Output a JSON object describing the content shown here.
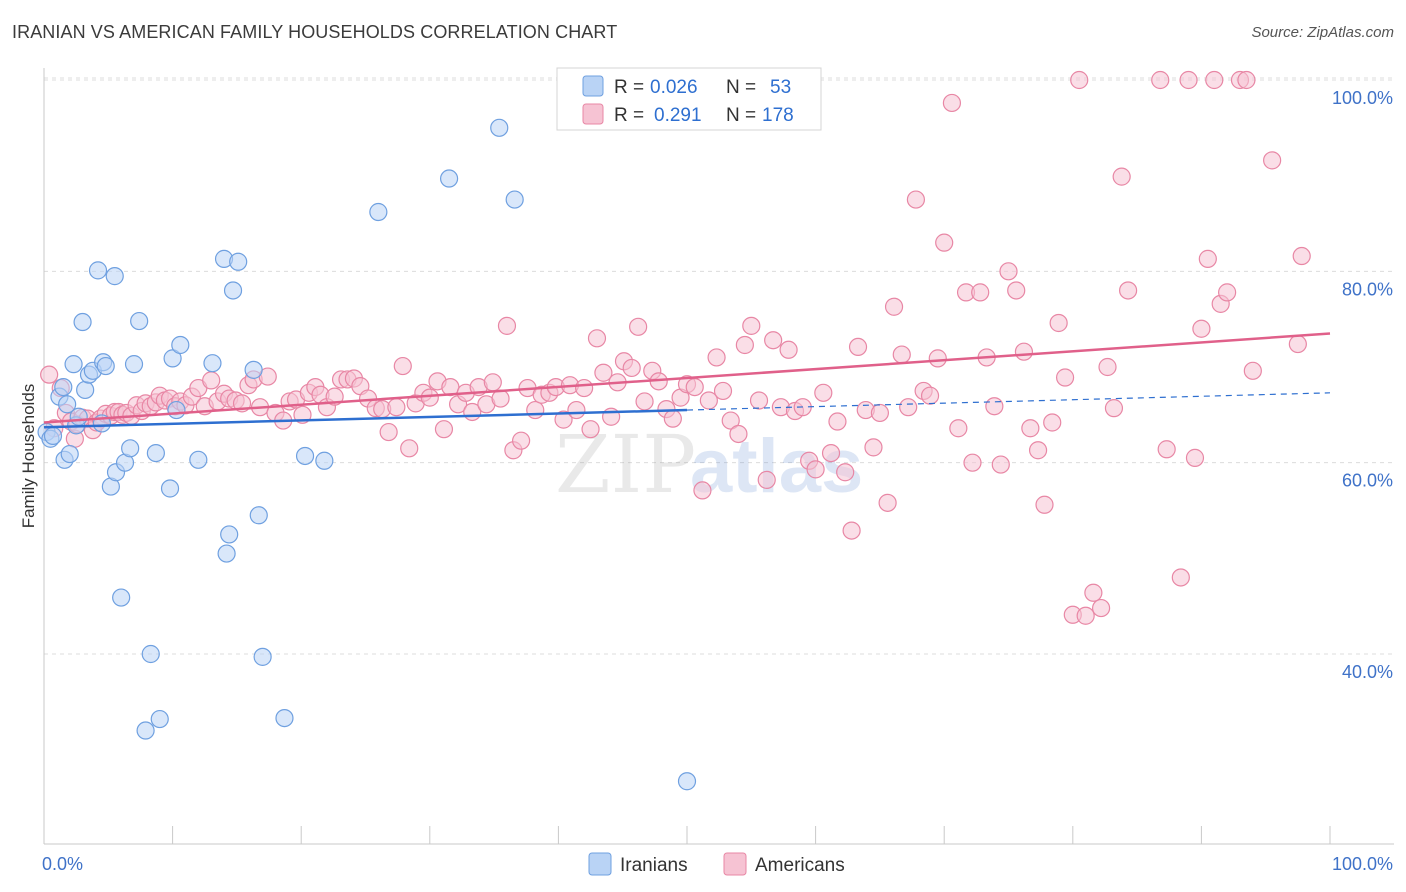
{
  "header": {
    "title": "IRANIAN VS AMERICAN FAMILY HOUSEHOLDS CORRELATION CHART",
    "source": "Source: ZipAtlas.com"
  },
  "chart_data": {
    "type": "scatter",
    "title": "IRANIAN VS AMERICAN FAMILY HOUSEHOLDS CORRELATION CHART",
    "xlabel": "",
    "ylabel": "Family Households",
    "xlim": [
      0,
      100
    ],
    "ylim": [
      20,
      103
    ],
    "x_tick_labels": [
      "0.0%",
      "100.0%"
    ],
    "y_ticks": [
      40,
      60,
      80,
      100
    ],
    "y_tick_labels": [
      "40.0%",
      "60.0%",
      "80.0%",
      "100.0%"
    ],
    "grid": true,
    "watermark": "ZIPatlas",
    "legend": {
      "position": "top-center",
      "entries": [
        {
          "r_label": "R =",
          "r_value": "0.026",
          "n_label": "N =",
          "n_value": "53"
        },
        {
          "r_label": "R =",
          "r_value": "0.291",
          "n_label": "N =",
          "n_value": "178"
        }
      ]
    },
    "series": [
      {
        "name": "Iranians",
        "color": "#6fa0e0",
        "fill": "#b9d3f5",
        "line_color": "#2e6fd0",
        "trend": {
          "x0": 0,
          "y0": 63.7,
          "x1": 50,
          "y1": 65.5,
          "dash_to_x": 100,
          "dash_to_y": 67.3
        },
        "points": [
          [
            0.2,
            63.2
          ],
          [
            0.5,
            62.5
          ],
          [
            0.7,
            62.8
          ],
          [
            1.2,
            66.9
          ],
          [
            1.5,
            67.9
          ],
          [
            1.6,
            60.3
          ],
          [
            1.8,
            66.1
          ],
          [
            2.0,
            60.9
          ],
          [
            2.3,
            70.3
          ],
          [
            2.5,
            63.9
          ],
          [
            2.7,
            64.8
          ],
          [
            3.0,
            74.7
          ],
          [
            3.2,
            67.6
          ],
          [
            3.5,
            69.2
          ],
          [
            3.8,
            69.6
          ],
          [
            4.2,
            80.1
          ],
          [
            4.5,
            64.1
          ],
          [
            4.6,
            70.5
          ],
          [
            4.8,
            70.1
          ],
          [
            5.2,
            57.5
          ],
          [
            5.5,
            79.5
          ],
          [
            5.6,
            59.0
          ],
          [
            6.0,
            45.9
          ],
          [
            6.3,
            60.0
          ],
          [
            6.7,
            61.5
          ],
          [
            7.0,
            70.3
          ],
          [
            7.4,
            74.8
          ],
          [
            7.9,
            32.0
          ],
          [
            8.3,
            40.0
          ],
          [
            8.7,
            61.0
          ],
          [
            9.0,
            33.2
          ],
          [
            9.8,
            57.3
          ],
          [
            10.0,
            70.9
          ],
          [
            10.3,
            65.5
          ],
          [
            10.6,
            72.3
          ],
          [
            12.0,
            60.3
          ],
          [
            13.1,
            70.4
          ],
          [
            14.0,
            81.3
          ],
          [
            14.2,
            50.5
          ],
          [
            14.4,
            52.5
          ],
          [
            14.7,
            78.0
          ],
          [
            15.1,
            81.0
          ],
          [
            16.3,
            69.7
          ],
          [
            16.7,
            54.5
          ],
          [
            17.0,
            39.7
          ],
          [
            18.7,
            33.3
          ],
          [
            20.3,
            60.7
          ],
          [
            21.8,
            60.2
          ],
          [
            26.0,
            86.2
          ],
          [
            31.5,
            89.7
          ],
          [
            35.4,
            95.0
          ],
          [
            36.6,
            87.5
          ],
          [
            50.0,
            26.7
          ]
        ]
      },
      {
        "name": "Americans",
        "color": "#e887a5",
        "fill": "#f6c3d3",
        "line_color": "#e0608a",
        "trend": {
          "x0": 0,
          "y0": 64.2,
          "x1": 100,
          "y1": 73.5
        },
        "points": [
          [
            0.4,
            69.2
          ],
          [
            0.8,
            63.6
          ],
          [
            1.3,
            67.8
          ],
          [
            1.7,
            65.2
          ],
          [
            2.1,
            64.3
          ],
          [
            2.4,
            62.5
          ],
          [
            2.6,
            64.0
          ],
          [
            3.0,
            64.7
          ],
          [
            3.4,
            64.6
          ],
          [
            3.8,
            63.4
          ],
          [
            4.1,
            64.2
          ],
          [
            4.4,
            64.6
          ],
          [
            4.8,
            65.1
          ],
          [
            5.2,
            64.9
          ],
          [
            5.5,
            65.3
          ],
          [
            5.8,
            65.3
          ],
          [
            6.1,
            65.0
          ],
          [
            6.4,
            65.2
          ],
          [
            6.8,
            64.9
          ],
          [
            7.2,
            66.0
          ],
          [
            7.6,
            65.4
          ],
          [
            7.9,
            66.2
          ],
          [
            8.3,
            65.9
          ],
          [
            8.7,
            66.3
          ],
          [
            9.0,
            67.0
          ],
          [
            9.4,
            66.5
          ],
          [
            9.8,
            66.7
          ],
          [
            10.2,
            65.9
          ],
          [
            10.6,
            66.4
          ],
          [
            11.0,
            66.0
          ],
          [
            11.5,
            66.9
          ],
          [
            12.0,
            67.8
          ],
          [
            12.5,
            65.9
          ],
          [
            13.0,
            68.6
          ],
          [
            13.5,
            66.4
          ],
          [
            14.0,
            67.2
          ],
          [
            14.4,
            66.7
          ],
          [
            14.9,
            66.5
          ],
          [
            15.4,
            66.2
          ],
          [
            15.9,
            68.1
          ],
          [
            16.3,
            68.7
          ],
          [
            16.8,
            65.8
          ],
          [
            17.4,
            69.0
          ],
          [
            18.0,
            65.2
          ],
          [
            18.6,
            64.4
          ],
          [
            19.1,
            66.4
          ],
          [
            19.6,
            66.6
          ],
          [
            20.1,
            65.0
          ],
          [
            20.6,
            67.3
          ],
          [
            21.1,
            67.9
          ],
          [
            21.5,
            67.1
          ],
          [
            22.0,
            65.8
          ],
          [
            22.6,
            66.9
          ],
          [
            23.1,
            68.7
          ],
          [
            23.6,
            68.7
          ],
          [
            24.1,
            68.8
          ],
          [
            24.6,
            68.0
          ],
          [
            25.2,
            66.7
          ],
          [
            25.8,
            65.7
          ],
          [
            26.3,
            65.6
          ],
          [
            26.8,
            63.2
          ],
          [
            27.4,
            65.8
          ],
          [
            27.9,
            70.1
          ],
          [
            28.4,
            61.5
          ],
          [
            28.9,
            66.2
          ],
          [
            29.5,
            67.3
          ],
          [
            30.0,
            66.8
          ],
          [
            30.6,
            68.5
          ],
          [
            31.1,
            63.5
          ],
          [
            31.6,
            67.9
          ],
          [
            32.2,
            66.1
          ],
          [
            32.8,
            67.3
          ],
          [
            33.3,
            65.3
          ],
          [
            33.8,
            67.9
          ],
          [
            34.4,
            66.1
          ],
          [
            34.9,
            68.4
          ],
          [
            35.5,
            66.7
          ],
          [
            36.0,
            74.3
          ],
          [
            36.5,
            61.3
          ],
          [
            37.1,
            62.3
          ],
          [
            37.6,
            67.8
          ],
          [
            38.2,
            65.5
          ],
          [
            38.7,
            67.1
          ],
          [
            39.3,
            67.3
          ],
          [
            39.8,
            67.9
          ],
          [
            40.4,
            64.5
          ],
          [
            40.9,
            68.1
          ],
          [
            41.4,
            65.5
          ],
          [
            42.0,
            67.8
          ],
          [
            42.5,
            63.5
          ],
          [
            43.0,
            73.0
          ],
          [
            43.5,
            69.4
          ],
          [
            44.1,
            64.8
          ],
          [
            44.6,
            68.4
          ],
          [
            45.1,
            70.6
          ],
          [
            45.7,
            69.9
          ],
          [
            46.2,
            74.2
          ],
          [
            46.7,
            66.4
          ],
          [
            47.3,
            69.6
          ],
          [
            47.8,
            68.5
          ],
          [
            48.4,
            65.6
          ],
          [
            48.9,
            64.6
          ],
          [
            49.5,
            66.8
          ],
          [
            50.0,
            68.2
          ],
          [
            50.6,
            67.9
          ],
          [
            51.2,
            57.1
          ],
          [
            51.7,
            66.5
          ],
          [
            52.3,
            71.0
          ],
          [
            52.8,
            67.5
          ],
          [
            53.4,
            64.4
          ],
          [
            54.0,
            63.0
          ],
          [
            54.5,
            72.3
          ],
          [
            55.0,
            74.3
          ],
          [
            55.6,
            66.5
          ],
          [
            56.2,
            58.2
          ],
          [
            56.7,
            72.8
          ],
          [
            57.3,
            65.8
          ],
          [
            57.9,
            71.8
          ],
          [
            58.4,
            65.4
          ],
          [
            59.0,
            65.8
          ],
          [
            59.5,
            60.2
          ],
          [
            60.0,
            59.3
          ],
          [
            60.6,
            67.3
          ],
          [
            61.2,
            61.0
          ],
          [
            61.7,
            64.3
          ],
          [
            62.3,
            59.0
          ],
          [
            62.8,
            52.9
          ],
          [
            63.3,
            72.1
          ],
          [
            63.9,
            65.5
          ],
          [
            64.5,
            61.6
          ],
          [
            65.0,
            65.2
          ],
          [
            65.6,
            55.8
          ],
          [
            66.1,
            76.3
          ],
          [
            66.7,
            71.3
          ],
          [
            67.2,
            65.8
          ],
          [
            67.8,
            87.5
          ],
          [
            68.4,
            67.5
          ],
          [
            68.9,
            67.0
          ],
          [
            69.5,
            70.9
          ],
          [
            70.0,
            83.0
          ],
          [
            70.6,
            97.6
          ],
          [
            71.1,
            63.6
          ],
          [
            71.7,
            77.8
          ],
          [
            72.2,
            60.0
          ],
          [
            72.8,
            77.8
          ],
          [
            73.3,
            71.0
          ],
          [
            73.9,
            65.9
          ],
          [
            74.4,
            59.8
          ],
          [
            75.0,
            80.0
          ],
          [
            75.6,
            78.0
          ],
          [
            76.2,
            71.6
          ],
          [
            76.7,
            63.6
          ],
          [
            77.3,
            61.3
          ],
          [
            77.8,
            55.6
          ],
          [
            78.4,
            64.2
          ],
          [
            78.9,
            74.6
          ],
          [
            79.4,
            68.9
          ],
          [
            80.0,
            44.1
          ],
          [
            80.5,
            100.0
          ],
          [
            81.0,
            44.0
          ],
          [
            81.6,
            46.4
          ],
          [
            82.2,
            44.8
          ],
          [
            82.7,
            70.0
          ],
          [
            83.2,
            65.7
          ],
          [
            83.8,
            89.9
          ],
          [
            84.3,
            78.0
          ],
          [
            86.8,
            100.0
          ],
          [
            87.3,
            61.4
          ],
          [
            88.4,
            48.0
          ],
          [
            89.0,
            100.0
          ],
          [
            89.5,
            60.5
          ],
          [
            90.0,
            74.0
          ],
          [
            90.5,
            81.3
          ],
          [
            91.0,
            100.0
          ],
          [
            91.5,
            76.6
          ],
          [
            92.0,
            77.8
          ],
          [
            93.0,
            100.0
          ],
          [
            93.5,
            100.0
          ],
          [
            94.0,
            69.6
          ],
          [
            95.5,
            91.6
          ],
          [
            97.5,
            72.4
          ],
          [
            97.8,
            81.6
          ]
        ]
      }
    ]
  },
  "bottom_legend": {
    "iranians_label": "Iranians",
    "americans_label": "Americans"
  }
}
